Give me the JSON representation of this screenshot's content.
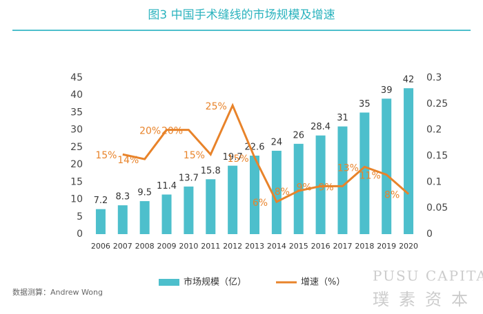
{
  "chart_data": {
    "type": "bar",
    "title": "图3 中国手术缝线的市场规模及增速",
    "categories": [
      "2006",
      "2007",
      "2008",
      "2009",
      "2010",
      "2011",
      "2012",
      "2013",
      "2014",
      "2015",
      "2016",
      "2017",
      "2018",
      "2019",
      "2020"
    ],
    "series": [
      {
        "name": "市场规模（亿）",
        "type": "bar",
        "color": "#4dbfcc",
        "values": [
          7.2,
          8.3,
          9.5,
          11.4,
          13.7,
          15.8,
          19.7,
          22.6,
          24,
          26,
          28.4,
          31,
          35,
          39,
          42
        ]
      },
      {
        "name": "增速（%）",
        "type": "line",
        "axis": "y2",
        "color": "#e8832a",
        "values": [
          null,
          0.153,
          0.144,
          0.2,
          0.2,
          0.153,
          0.247,
          0.147,
          0.062,
          0.083,
          0.092,
          0.092,
          0.129,
          0.114,
          0.077
        ],
        "value_labels": [
          null,
          "15%",
          "14%",
          "20%",
          "20%",
          "15%",
          "25%",
          "15%",
          "6%",
          "8%",
          "9%",
          "9%",
          "13%",
          "11%",
          "8%"
        ]
      }
    ],
    "ylim": [
      0,
      45
    ],
    "yticks": [
      0,
      5,
      10,
      15,
      20,
      25,
      30,
      35,
      40,
      45
    ],
    "y2lim": [
      0,
      0.3
    ],
    "y2ticks": [
      0,
      0.05,
      0.1,
      0.15,
      0.2,
      0.25,
      0.3
    ],
    "source": "数据测算：Andrew Wong",
    "watermark": {
      "en": "PUSU CAPITAL",
      "cn": "璞素资本"
    }
  }
}
